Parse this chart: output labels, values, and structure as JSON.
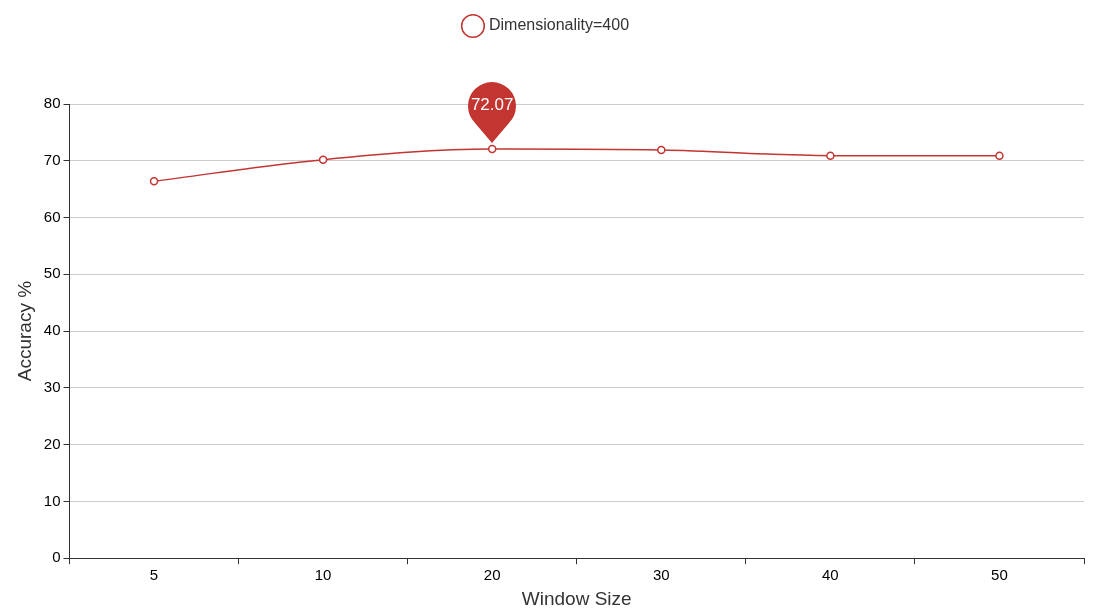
{
  "chart_data": {
    "type": "line",
    "xlabel": "Window Size",
    "ylabel": "Accuracy %",
    "categories": [
      "5",
      "10",
      "20",
      "30",
      "40",
      "50"
    ],
    "series": [
      {
        "name": "Dimensionality=400",
        "color": "#c23531",
        "values": [
          66.4,
          70.2,
          72.07,
          71.9,
          70.9,
          70.9
        ]
      }
    ],
    "ylim": [
      0,
      80
    ],
    "yticks": [
      0,
      10,
      20,
      30,
      40,
      50,
      60,
      70,
      80
    ],
    "grid": "y",
    "legend": "top",
    "marker": "circle",
    "line_style": "solid",
    "annotations": [
      {
        "text": "72.07",
        "x": "20",
        "y": 72.07
      }
    ]
  }
}
